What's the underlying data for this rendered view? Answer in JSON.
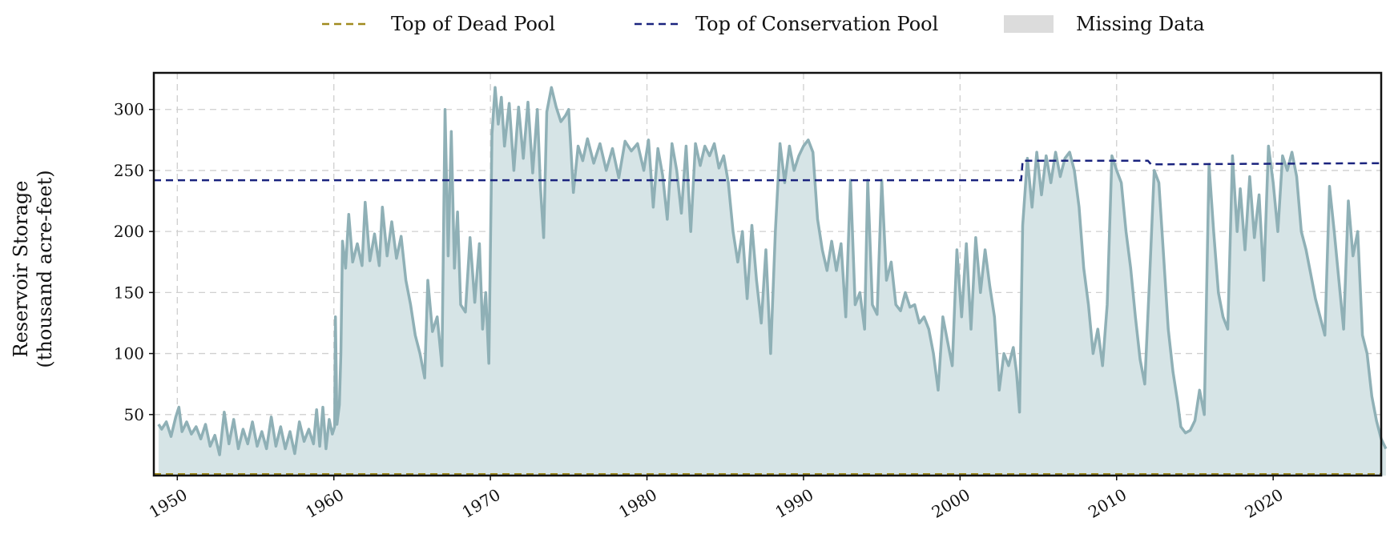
{
  "chart_data": {
    "type": "area",
    "xlabel": "",
    "ylabel_lines": [
      "Reservoir Storage",
      "(thousand acre-feet)"
    ],
    "xlim": [
      1948.5,
      2026.9
    ],
    "ylim": [
      0,
      330
    ],
    "x_ticks": [
      1950,
      1960,
      1970,
      1980,
      1990,
      2000,
      2010,
      2020
    ],
    "y_ticks": [
      50,
      100,
      150,
      200,
      250,
      300
    ],
    "x_tick_labels": [
      "1950",
      "1960",
      "1970",
      "1980",
      "1990",
      "2000",
      "2010",
      "2020"
    ],
    "y_tick_labels": [
      "50",
      "100",
      "150",
      "200",
      "250",
      "300"
    ],
    "grid": true,
    "legend_placement": "top-center, above plot",
    "legend": [
      {
        "label": "Top of Dead Pool",
        "style": "dashed-line",
        "color": "#a08a1e"
      },
      {
        "label": "Top of Conservation Pool",
        "style": "dashed-line",
        "color": "#1a237e"
      },
      {
        "label": "Missing Data",
        "style": "filled-box",
        "color": "#dcdcdc"
      }
    ],
    "colors": {
      "storage_line": "#8fb0b6",
      "storage_fill": "#d6e4e6"
    },
    "series": [
      {
        "role": "storage",
        "points": [
          [
            1948.8,
            42
          ],
          [
            1949.0,
            38
          ],
          [
            1949.3,
            44
          ],
          [
            1949.6,
            32
          ],
          [
            1949.9,
            48
          ],
          [
            1950.1,
            56
          ],
          [
            1950.3,
            36
          ],
          [
            1950.6,
            44
          ],
          [
            1950.9,
            34
          ],
          [
            1951.2,
            40
          ],
          [
            1951.5,
            30
          ],
          [
            1951.8,
            42
          ],
          [
            1952.1,
            24
          ],
          [
            1952.4,
            33
          ],
          [
            1952.7,
            17
          ],
          [
            1953.0,
            52
          ],
          [
            1953.3,
            26
          ],
          [
            1953.6,
            46
          ],
          [
            1953.9,
            22
          ],
          [
            1954.2,
            38
          ],
          [
            1954.5,
            26
          ],
          [
            1954.8,
            44
          ],
          [
            1955.1,
            24
          ],
          [
            1955.4,
            36
          ],
          [
            1955.7,
            22
          ],
          [
            1956.0,
            48
          ],
          [
            1956.3,
            24
          ],
          [
            1956.6,
            40
          ],
          [
            1956.9,
            22
          ],
          [
            1957.2,
            36
          ],
          [
            1957.5,
            18
          ],
          [
            1957.8,
            44
          ],
          [
            1958.1,
            28
          ],
          [
            1958.4,
            38
          ],
          [
            1958.7,
            26
          ],
          [
            1958.9,
            54
          ],
          [
            1959.1,
            24
          ],
          [
            1959.3,
            56
          ],
          [
            1959.5,
            22
          ],
          [
            1959.7,
            46
          ],
          [
            1959.9,
            34
          ],
          [
            1960.05,
            40
          ],
          [
            1960.1,
            130
          ],
          [
            1960.2,
            42
          ],
          [
            1960.35,
            58
          ],
          [
            1960.45,
            100
          ],
          [
            1960.55,
            192
          ],
          [
            1960.75,
            170
          ],
          [
            1960.95,
            214
          ],
          [
            1961.2,
            175
          ],
          [
            1961.5,
            190
          ],
          [
            1961.8,
            172
          ],
          [
            1962.0,
            224
          ],
          [
            1962.3,
            176
          ],
          [
            1962.6,
            198
          ],
          [
            1962.9,
            172
          ],
          [
            1963.1,
            220
          ],
          [
            1963.4,
            180
          ],
          [
            1963.7,
            208
          ],
          [
            1964.0,
            178
          ],
          [
            1964.3,
            196
          ],
          [
            1964.6,
            160
          ],
          [
            1964.9,
            140
          ],
          [
            1965.2,
            115
          ],
          [
            1965.5,
            100
          ],
          [
            1965.8,
            80
          ],
          [
            1966.0,
            160
          ],
          [
            1966.3,
            118
          ],
          [
            1966.6,
            130
          ],
          [
            1966.9,
            90
          ],
          [
            1967.1,
            300
          ],
          [
            1967.3,
            180
          ],
          [
            1967.5,
            282
          ],
          [
            1967.7,
            170
          ],
          [
            1967.9,
            216
          ],
          [
            1968.1,
            140
          ],
          [
            1968.4,
            134
          ],
          [
            1968.7,
            195
          ],
          [
            1969.0,
            142
          ],
          [
            1969.3,
            190
          ],
          [
            1969.5,
            120
          ],
          [
            1969.7,
            150
          ],
          [
            1969.9,
            92
          ],
          [
            1970.1,
            280
          ],
          [
            1970.3,
            318
          ],
          [
            1970.5,
            288
          ],
          [
            1970.7,
            310
          ],
          [
            1970.9,
            270
          ],
          [
            1971.2,
            305
          ],
          [
            1971.5,
            250
          ],
          [
            1971.8,
            302
          ],
          [
            1972.1,
            260
          ],
          [
            1972.4,
            306
          ],
          [
            1972.7,
            248
          ],
          [
            1973.0,
            300
          ],
          [
            1973.2,
            235
          ],
          [
            1973.4,
            195
          ],
          [
            1973.6,
            298
          ],
          [
            1973.9,
            318
          ],
          [
            1974.2,
            302
          ],
          [
            1974.5,
            290
          ],
          [
            1974.8,
            295
          ],
          [
            1975.0,
            300
          ],
          [
            1975.3,
            232
          ],
          [
            1975.6,
            270
          ],
          [
            1975.9,
            258
          ],
          [
            1976.2,
            276
          ],
          [
            1976.6,
            256
          ],
          [
            1977.0,
            272
          ],
          [
            1977.4,
            250
          ],
          [
            1977.8,
            268
          ],
          [
            1978.2,
            244
          ],
          [
            1978.6,
            274
          ],
          [
            1979.0,
            266
          ],
          [
            1979.4,
            272
          ],
          [
            1979.8,
            250
          ],
          [
            1980.1,
            275
          ],
          [
            1980.4,
            220
          ],
          [
            1980.7,
            268
          ],
          [
            1981.0,
            246
          ],
          [
            1981.3,
            210
          ],
          [
            1981.6,
            272
          ],
          [
            1981.9,
            250
          ],
          [
            1982.2,
            215
          ],
          [
            1982.5,
            270
          ],
          [
            1982.8,
            200
          ],
          [
            1983.1,
            272
          ],
          [
            1983.4,
            254
          ],
          [
            1983.7,
            270
          ],
          [
            1984.0,
            262
          ],
          [
            1984.3,
            272
          ],
          [
            1984.6,
            252
          ],
          [
            1984.9,
            262
          ],
          [
            1985.2,
            240
          ],
          [
            1985.5,
            200
          ],
          [
            1985.8,
            175
          ],
          [
            1986.1,
            200
          ],
          [
            1986.4,
            145
          ],
          [
            1986.7,
            205
          ],
          [
            1987.0,
            160
          ],
          [
            1987.3,
            125
          ],
          [
            1987.6,
            185
          ],
          [
            1987.9,
            100
          ],
          [
            1988.2,
            200
          ],
          [
            1988.5,
            272
          ],
          [
            1988.8,
            240
          ],
          [
            1989.1,
            270
          ],
          [
            1989.4,
            250
          ],
          [
            1989.7,
            262
          ],
          [
            1990.0,
            270
          ],
          [
            1990.3,
            275
          ],
          [
            1990.6,
            265
          ],
          [
            1990.9,
            210
          ],
          [
            1991.2,
            185
          ],
          [
            1991.5,
            168
          ],
          [
            1991.8,
            192
          ],
          [
            1992.1,
            168
          ],
          [
            1992.4,
            190
          ],
          [
            1992.7,
            130
          ],
          [
            1993.0,
            242
          ],
          [
            1993.3,
            140
          ],
          [
            1993.6,
            150
          ],
          [
            1993.9,
            120
          ],
          [
            1994.1,
            242
          ],
          [
            1994.4,
            140
          ],
          [
            1994.7,
            132
          ],
          [
            1995.0,
            242
          ],
          [
            1995.3,
            160
          ],
          [
            1995.6,
            175
          ],
          [
            1995.9,
            140
          ],
          [
            1996.2,
            135
          ],
          [
            1996.5,
            150
          ],
          [
            1996.8,
            138
          ],
          [
            1997.1,
            140
          ],
          [
            1997.4,
            125
          ],
          [
            1997.7,
            130
          ],
          [
            1998.0,
            120
          ],
          [
            1998.3,
            100
          ],
          [
            1998.6,
            70
          ],
          [
            1998.9,
            130
          ],
          [
            1999.2,
            110
          ],
          [
            1999.5,
            90
          ],
          [
            1999.8,
            185
          ],
          [
            2000.1,
            130
          ],
          [
            2000.4,
            190
          ],
          [
            2000.7,
            120
          ],
          [
            2001.0,
            195
          ],
          [
            2001.3,
            150
          ],
          [
            2001.6,
            185
          ],
          [
            2001.9,
            155
          ],
          [
            2002.2,
            130
          ],
          [
            2002.5,
            70
          ],
          [
            2002.8,
            100
          ],
          [
            2003.1,
            90
          ],
          [
            2003.4,
            105
          ],
          [
            2003.6,
            85
          ],
          [
            2003.8,
            52
          ],
          [
            2004.0,
            205
          ],
          [
            2004.3,
            260
          ],
          [
            2004.6,
            220
          ],
          [
            2004.9,
            265
          ],
          [
            2005.2,
            230
          ],
          [
            2005.5,
            262
          ],
          [
            2005.8,
            240
          ],
          [
            2006.1,
            265
          ],
          [
            2006.4,
            245
          ],
          [
            2006.7,
            260
          ],
          [
            2007.0,
            265
          ],
          [
            2007.3,
            250
          ],
          [
            2007.6,
            220
          ],
          [
            2007.9,
            170
          ],
          [
            2008.2,
            140
          ],
          [
            2008.5,
            100
          ],
          [
            2008.8,
            120
          ],
          [
            2009.1,
            90
          ],
          [
            2009.4,
            140
          ],
          [
            2009.7,
            262
          ],
          [
            2010.0,
            250
          ],
          [
            2010.3,
            240
          ],
          [
            2010.6,
            200
          ],
          [
            2010.9,
            170
          ],
          [
            2011.2,
            130
          ],
          [
            2011.5,
            95
          ],
          [
            2011.8,
            75
          ],
          [
            2012.1,
            160
          ],
          [
            2012.4,
            250
          ],
          [
            2012.7,
            240
          ],
          [
            2013.0,
            180
          ],
          [
            2013.3,
            120
          ],
          [
            2013.6,
            85
          ],
          [
            2013.9,
            60
          ],
          [
            2014.1,
            40
          ],
          [
            2014.4,
            35
          ],
          [
            2014.7,
            37
          ],
          [
            2015.0,
            45
          ],
          [
            2015.3,
            70
          ],
          [
            2015.6,
            50
          ],
          [
            2015.9,
            255
          ],
          [
            2016.2,
            200
          ],
          [
            2016.5,
            150
          ],
          [
            2016.8,
            130
          ],
          [
            2017.1,
            120
          ],
          [
            2017.4,
            262
          ],
          [
            2017.7,
            200
          ],
          [
            2017.9,
            235
          ],
          [
            2018.2,
            185
          ],
          [
            2018.5,
            245
          ],
          [
            2018.8,
            195
          ],
          [
            2019.1,
            230
          ],
          [
            2019.4,
            160
          ],
          [
            2019.7,
            270
          ],
          [
            2020.0,
            240
          ],
          [
            2020.3,
            200
          ],
          [
            2020.6,
            262
          ],
          [
            2020.9,
            250
          ],
          [
            2021.2,
            265
          ],
          [
            2021.5,
            245
          ],
          [
            2021.8,
            200
          ],
          [
            2022.1,
            185
          ],
          [
            2022.4,
            165
          ],
          [
            2022.7,
            145
          ],
          [
            2023.0,
            130
          ],
          [
            2023.3,
            115
          ],
          [
            2023.6,
            237
          ],
          [
            2023.9,
            200
          ],
          [
            2024.2,
            160
          ],
          [
            2024.5,
            120
          ],
          [
            2024.8,
            225
          ],
          [
            2025.1,
            180
          ],
          [
            2025.4,
            200
          ],
          [
            2025.7,
            115
          ],
          [
            2026.0,
            100
          ],
          [
            2026.3,
            65
          ],
          [
            2026.6,
            45
          ],
          [
            2026.9,
            30
          ],
          [
            2027.2,
            22
          ]
        ]
      },
      {
        "role": "conservation_pool",
        "label": "Top of Conservation Pool",
        "points": [
          [
            1948.5,
            242
          ],
          [
            2003.9,
            242
          ],
          [
            2004.0,
            258
          ],
          [
            2012.0,
            258
          ],
          [
            2012.2,
            255
          ],
          [
            2026.9,
            256
          ]
        ]
      },
      {
        "role": "dead_pool",
        "label": "Top of Dead Pool",
        "points": [
          [
            1948.5,
            0.5
          ],
          [
            2026.9,
            0.5
          ]
        ]
      }
    ]
  }
}
